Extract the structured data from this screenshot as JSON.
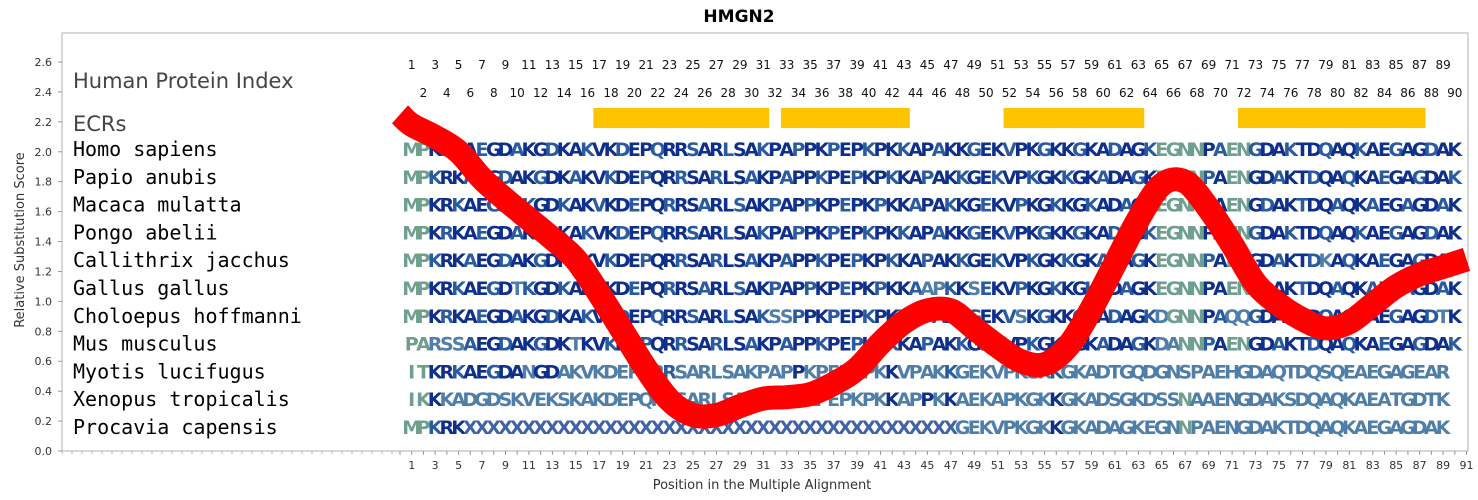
{
  "chart_data": {
    "type": "line",
    "title": "HMGN2",
    "xlabel": "Position in the Multiple Alignment",
    "ylabel": "Relative Substitution Score",
    "ylim": [
      0.0,
      2.6
    ],
    "xlim": [
      0,
      91
    ],
    "y_ticks": [
      "0.0",
      "0.2",
      "0.4",
      "0.6",
      "0.8",
      "1.0",
      "1.2",
      "1.4",
      "1.6",
      "1.8",
      "2.0",
      "2.2",
      "2.4",
      "2.6"
    ],
    "x_ticks": [
      "1",
      "3",
      "5",
      "7",
      "9",
      "11",
      "13",
      "15",
      "17",
      "19",
      "21",
      "23",
      "25",
      "27",
      "29",
      "31",
      "33",
      "35",
      "37",
      "39",
      "41",
      "43",
      "45",
      "47",
      "49",
      "51",
      "53",
      "55",
      "57",
      "59",
      "61",
      "63",
      "65",
      "67",
      "69",
      "71",
      "73",
      "75",
      "77",
      "79",
      "81",
      "83",
      "85",
      "87",
      "89",
      "91"
    ],
    "row_headers": {
      "human_index": "Human Protein Index",
      "ecrs": "ECRs"
    },
    "human_index_odd": [
      "1",
      "3",
      "5",
      "7",
      "9",
      "11",
      "13",
      "15",
      "17",
      "19",
      "21",
      "23",
      "25",
      "27",
      "29",
      "31",
      "33",
      "35",
      "37",
      "39",
      "41",
      "43",
      "45",
      "47",
      "49",
      "51",
      "53",
      "55",
      "57",
      "59",
      "61",
      "63",
      "65",
      "67",
      "69",
      "71",
      "73",
      "75",
      "77",
      "79",
      "81",
      "83",
      "85",
      "87",
      "89"
    ],
    "human_index_even": [
      "2",
      "4",
      "6",
      "8",
      "10",
      "12",
      "14",
      "16",
      "18",
      "20",
      "22",
      "24",
      "26",
      "28",
      "30",
      "32",
      "34",
      "36",
      "38",
      "40",
      "42",
      "44",
      "46",
      "48",
      "50",
      "52",
      "54",
      "56",
      "58",
      "60",
      "62",
      "64",
      "66",
      "68",
      "70",
      "72",
      "74",
      "76",
      "78",
      "80",
      "82",
      "84",
      "86",
      "88",
      "90"
    ],
    "ecrs": [
      [
        17,
        31
      ],
      [
        33,
        43
      ],
      [
        52,
        63
      ],
      [
        72,
        87
      ]
    ],
    "alignment": [
      {
        "species": "Homo sapiens",
        "seq": "MPKRKAEGDAKGDKAKVKDEPQRRSARLSAKPAPPKPEPKPKKAPAKKGEKVPKGKKGKADAGKEGNNPAENGDAKTDQAQKAEGAGDAK"
      },
      {
        "species": "Papio anubis",
        "seq": "MPKRKAEGDAKGDKAKVKDEPQRRSARLSAKPAPPKPEPKPKKAPAKKGEKVPKGKKGKADAGKEGNNPAENGDAKTDQAQKAEGAGDAK"
      },
      {
        "species": "Macaca mulatta",
        "seq": "MPKRKAEGDAKGDKAKVKDEPQRRSARLSAKPAPPKPEPKPKKAPAKKGEKVPKGKKGKADAGKEGNNPAENGDAKTDQAQKAEGAGDAK"
      },
      {
        "species": "Pongo abelii",
        "seq": "MPKRKAEGDAKGDKAKVKDEPQRRSARLSAKPAPPKPEPKPKKAPAKKGEKVPKGKKGKADAGKEGNNPAENGDAKTDQAQKAEGAGDAK"
      },
      {
        "species": "Callithrix jacchus",
        "seq": "MPKRKAEGDAKGDKAKVKDEPQRRSARLSAKPAPPKPEPKPKKAPAKKGEKVPKGKKGKADAGKEGNNPAENGDAKTDKAQKAEGAGDAK"
      },
      {
        "species": "Gallus gallus",
        "seq": "MPKRKAEGDTKGDKAKVKDEPQRRSARLSAKPAPPKPEPKPKKAAPKKSEKVPKGKKGKADAGKEGNNPAENGDAKTDQAQKAEGAGDAK"
      },
      {
        "species": "Choloepus hoffmanni",
        "seq": "MPKRKAEGDAKGDKAKVKDEPQRRSARLSAKSSPPKPEPKPKKAPAKKGEKVSKGKKGKADAGKDGNNPAQQGDAKTDQAQKAEGAGDTK"
      },
      {
        "species": "Mus musculus",
        "seq": "PARSSAEGDAKGDKTKVKDEPQRRSARLSAKPAPPKPEPKPKKAPAKKGEKVPKGKKGKADAGKDANNPAENGDAKTDQAQKAEGAGDAK"
      },
      {
        "species": "Myotis lucifugus",
        "seq": "ITKRKAEGDANGDAKVKDEPQRRSARLSAKPAPPKPEPKPKKVPAKKGEKVPKGKKGKADTGQDGNSPAEHGDAQTDQSQEAEGAGEAR"
      },
      {
        "species": "Xenopus tropicalis",
        "seq": "IKKKADGDSKVEKSKAKDEPQRRSARLSAKPAPPKPEPKPKKAPPKKAEKAPKGKKGKADSGKDSSNAAENGDAKSDQAQKAEATGDTK"
      },
      {
        "species": "Procavia capensis",
        "seq": "MPKRKXXXXXXXXXXXXXXXXXXXXXXXXXXXXXXXXXXXXXXXXXXGEKVPKGKKGKADAGKEGNNPAENGDAKTDQAQKAEGAGDAK"
      }
    ],
    "series": [
      {
        "x": [
          0,
          1,
          3,
          5,
          7,
          9,
          11,
          13,
          15,
          17,
          19,
          21,
          23,
          25,
          27,
          29,
          31,
          33,
          35,
          37,
          39,
          41,
          43,
          45,
          47,
          49,
          51,
          53,
          55,
          57,
          59,
          61,
          63,
          65,
          67,
          69,
          71,
          73,
          75,
          77,
          79,
          81,
          83,
          85,
          87,
          89,
          91
        ],
        "y": [
          2.25,
          2.18,
          2.1,
          2.0,
          1.82,
          1.68,
          1.55,
          1.42,
          1.28,
          1.05,
          0.8,
          0.55,
          0.34,
          0.24,
          0.24,
          0.3,
          0.35,
          0.36,
          0.38,
          0.45,
          0.55,
          0.72,
          0.86,
          0.94,
          0.94,
          0.82,
          0.7,
          0.6,
          0.58,
          0.7,
          0.95,
          1.25,
          1.55,
          1.78,
          1.8,
          1.62,
          1.38,
          1.12,
          0.98,
          0.88,
          0.82,
          0.86,
          0.98,
          1.1,
          1.18,
          1.23,
          1.28
        ]
      }
    ],
    "colors": {
      "line": "#ff0000",
      "ecr": "#ffc400",
      "aa_dark": "#0e2f8c",
      "aa_mid": "#2a5ba0",
      "aa_light": "#4f7ea8",
      "aa_pale": "#6fa08e"
    }
  }
}
